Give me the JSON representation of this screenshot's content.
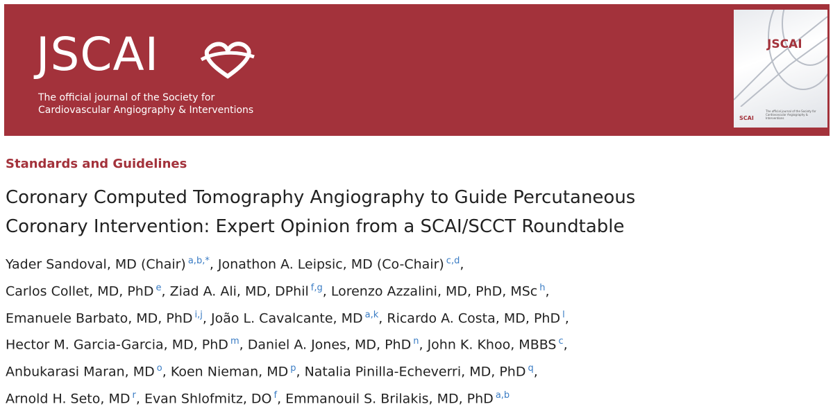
{
  "header": {
    "logo": "JSCAI",
    "tagline": [
      "The official journal of the Society for",
      "Cardiovascular Angiography & Interventions"
    ],
    "cover": {
      "logo": "JSCAI",
      "tagline": "The official journal of the Society for Cardiovascular Angiography & Interventions",
      "society": "SCAI"
    }
  },
  "article": {
    "section": "Standards and Guidelines",
    "title": [
      "Coronary Computed Tomography Angiography to Guide Percutaneous",
      "Coronary Intervention: Expert Opinion from a SCAI/SCCT Roundtable"
    ],
    "author_lines": [
      [
        {
          "name": "Yader Sandoval, MD (Chair)",
          "affil": "a,b,*",
          "sep": ","
        },
        {
          "name": "Jonathon A. Leipsic, MD (Co-Chair)",
          "affil": "c,d",
          "sep": ","
        }
      ],
      [
        {
          "name": "Carlos Collet, MD, PhD",
          "affil": "e",
          "sep": ","
        },
        {
          "name": "Ziad A. Ali, MD, DPhil",
          "affil": "f,g",
          "sep": ","
        },
        {
          "name": "Lorenzo Azzalini, MD, PhD, MSc",
          "affil": "h",
          "sep": ","
        }
      ],
      [
        {
          "name": "Emanuele Barbato, MD, PhD",
          "affil": "i,j",
          "sep": ","
        },
        {
          "name": "João L. Cavalcante, MD",
          "affil": "a,k",
          "sep": ","
        },
        {
          "name": "Ricardo A. Costa, MD, PhD",
          "affil": "l",
          "sep": ","
        }
      ],
      [
        {
          "name": "Hector M. Garcia-Garcia, MD, PhD",
          "affil": "m",
          "sep": ","
        },
        {
          "name": "Daniel A. Jones, MD, PhD",
          "affil": "n",
          "sep": ","
        },
        {
          "name": "John K. Khoo, MBBS",
          "affil": "c",
          "sep": ","
        }
      ],
      [
        {
          "name": "Anbukarasi Maran, MD",
          "affil": "o",
          "sep": ","
        },
        {
          "name": "Koen Nieman, MD",
          "affil": "p",
          "sep": ","
        },
        {
          "name": "Natalia Pinilla-Echeverri, MD, PhD",
          "affil": "q",
          "sep": ","
        }
      ],
      [
        {
          "name": "Arnold H. Seto, MD",
          "affil": "r",
          "sep": ","
        },
        {
          "name": "Evan Shlofmitz, DO",
          "affil": "f",
          "sep": ","
        },
        {
          "name": "Emmanouil S. Brilakis, MD, PhD",
          "affil": "a,b"
        }
      ]
    ]
  }
}
